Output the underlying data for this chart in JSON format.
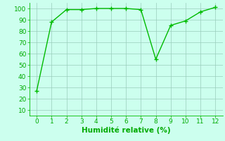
{
  "x": [
    0,
    1,
    2,
    3,
    4,
    5,
    6,
    7,
    8,
    9,
    10,
    11,
    12
  ],
  "y": [
    27,
    88,
    99,
    99,
    100,
    100,
    100,
    99,
    55,
    85,
    89,
    97,
    101
  ],
  "line_color": "#00BB00",
  "marker": "+",
  "marker_size": 4,
  "linewidth": 1.0,
  "bg_color": "#CCFFEE",
  "grid_color": "#99CCBB",
  "xlabel": "Humidité relative (%)",
  "xlabel_color": "#00AA00",
  "xlabel_fontsize": 7.5,
  "tick_color": "#00AA00",
  "tick_fontsize": 6.5,
  "ylim": [
    5,
    105
  ],
  "xlim": [
    -0.5,
    12.5
  ],
  "yticks": [
    10,
    20,
    30,
    40,
    50,
    60,
    70,
    80,
    90,
    100
  ],
  "xticks": [
    0,
    1,
    2,
    3,
    4,
    5,
    6,
    7,
    8,
    9,
    10,
    11,
    12
  ]
}
